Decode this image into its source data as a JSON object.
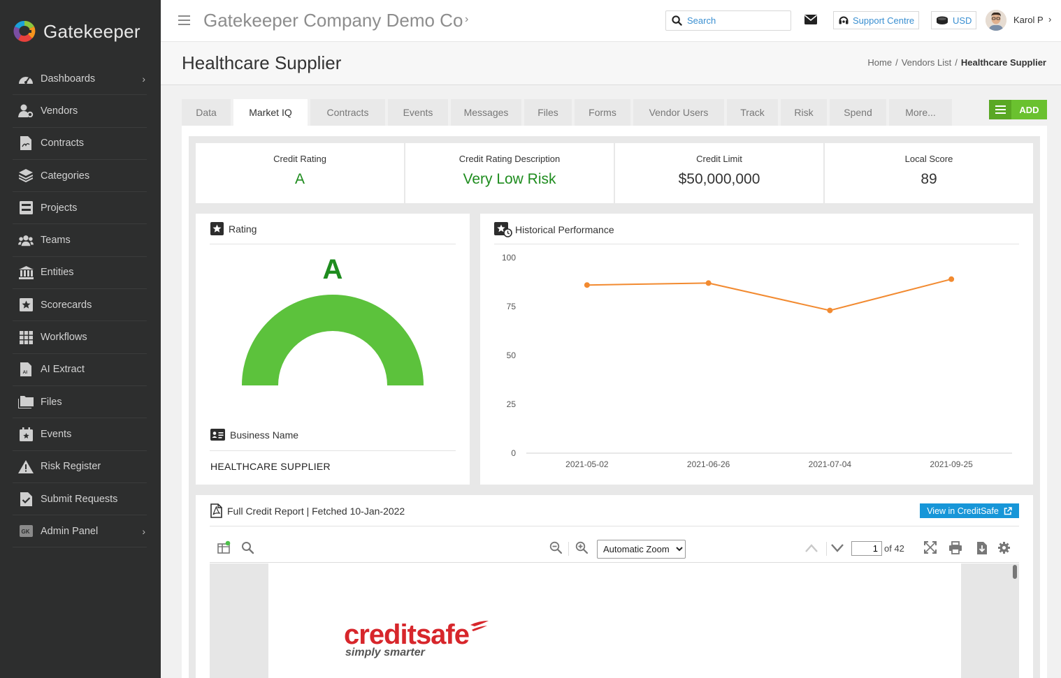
{
  "brand": {
    "name": "Gatekeeper"
  },
  "sidebar": {
    "items": [
      {
        "label": "Dashboards",
        "icon": "dashboard-icon",
        "has_submenu": true
      },
      {
        "label": "Vendors",
        "icon": "vendors-icon",
        "has_submenu": false
      },
      {
        "label": "Contracts",
        "icon": "contracts-icon",
        "has_submenu": false
      },
      {
        "label": "Categories",
        "icon": "categories-icon",
        "has_submenu": false
      },
      {
        "label": "Projects",
        "icon": "projects-icon",
        "has_submenu": false
      },
      {
        "label": "Teams",
        "icon": "teams-icon",
        "has_submenu": false
      },
      {
        "label": "Entities",
        "icon": "entities-icon",
        "has_submenu": false
      },
      {
        "label": "Scorecards",
        "icon": "scorecards-icon",
        "has_submenu": false
      },
      {
        "label": "Workflows",
        "icon": "workflows-icon",
        "has_submenu": false
      },
      {
        "label": "AI Extract",
        "icon": "ai-extract-icon",
        "has_submenu": false
      },
      {
        "label": "Files",
        "icon": "files-icon",
        "has_submenu": false
      },
      {
        "label": "Events",
        "icon": "events-icon",
        "has_submenu": false
      },
      {
        "label": "Risk Register",
        "icon": "risk-register-icon",
        "has_submenu": false
      },
      {
        "label": "Submit Requests",
        "icon": "submit-requests-icon",
        "has_submenu": false
      },
      {
        "label": "Admin Panel",
        "icon": "admin-panel-icon",
        "icon_text": "GK",
        "has_submenu": true
      }
    ]
  },
  "topbar": {
    "company": "Gatekeeper Company Demo Co",
    "search_placeholder": "Search",
    "support_label": "Support Centre",
    "currency": "USD",
    "user_name": "Karol P"
  },
  "page": {
    "title": "Healthcare Supplier",
    "breadcrumb": [
      "Home",
      "Vendors List",
      "Healthcare Supplier"
    ]
  },
  "tabs": [
    {
      "label": "Data",
      "active": false
    },
    {
      "label": "Market IQ",
      "active": true
    },
    {
      "label": "Contracts",
      "active": false
    },
    {
      "label": "Events",
      "active": false
    },
    {
      "label": "Messages",
      "active": false
    },
    {
      "label": "Files",
      "active": false
    },
    {
      "label": "Forms",
      "active": false
    },
    {
      "label": "Vendor Users",
      "active": false
    },
    {
      "label": "Track",
      "active": false
    },
    {
      "label": "Risk",
      "active": false
    },
    {
      "label": "Spend",
      "active": false
    },
    {
      "label": "More...",
      "active": false
    }
  ],
  "add_button": "ADD",
  "metrics": [
    {
      "label": "Credit Rating",
      "value": "A",
      "highlight": true
    },
    {
      "label": "Credit Rating Description",
      "value": "Very Low Risk",
      "highlight": true
    },
    {
      "label": "Credit Limit",
      "value": "$50,000,000",
      "highlight": false
    },
    {
      "label": "Local Score",
      "value": "89",
      "highlight": false
    }
  ],
  "rating_card": {
    "title": "Rating",
    "rating": "A",
    "gauge_fraction": 1.0,
    "gauge_color": "#5cc23c",
    "business_name_label": "Business Name",
    "business_name": "HEALTHCARE SUPPLIER"
  },
  "history_card": {
    "title": "Historical Performance"
  },
  "chart_data": {
    "type": "line",
    "title": "",
    "xlabel": "",
    "ylabel": "",
    "x": [
      "2021-05-02",
      "2021-06-26",
      "2021-07-04",
      "2021-09-25"
    ],
    "series": [
      {
        "values": [
          86,
          87,
          73,
          89
        ]
      }
    ],
    "yticks": [
      0,
      25,
      50,
      75,
      100
    ],
    "ylim": [
      0,
      100
    ],
    "grid": false,
    "line_color": "#f28a30"
  },
  "report_card": {
    "title": "Full Credit Report | Fetched 10-Jan-2022",
    "view_button": "View in CreditSafe",
    "zoom_options": [
      "Automatic Zoom"
    ],
    "current_page": "1",
    "page_count_text": "of 42",
    "logo_word_1": "credit",
    "logo_word_2": "safe",
    "logo_tagline": "simply smarter"
  },
  "colors": {
    "sidebar_bg": "#2d2e2e",
    "accent_green": "#1e8c1e",
    "add_green": "#6ac12f",
    "link_blue": "#1796d8"
  }
}
